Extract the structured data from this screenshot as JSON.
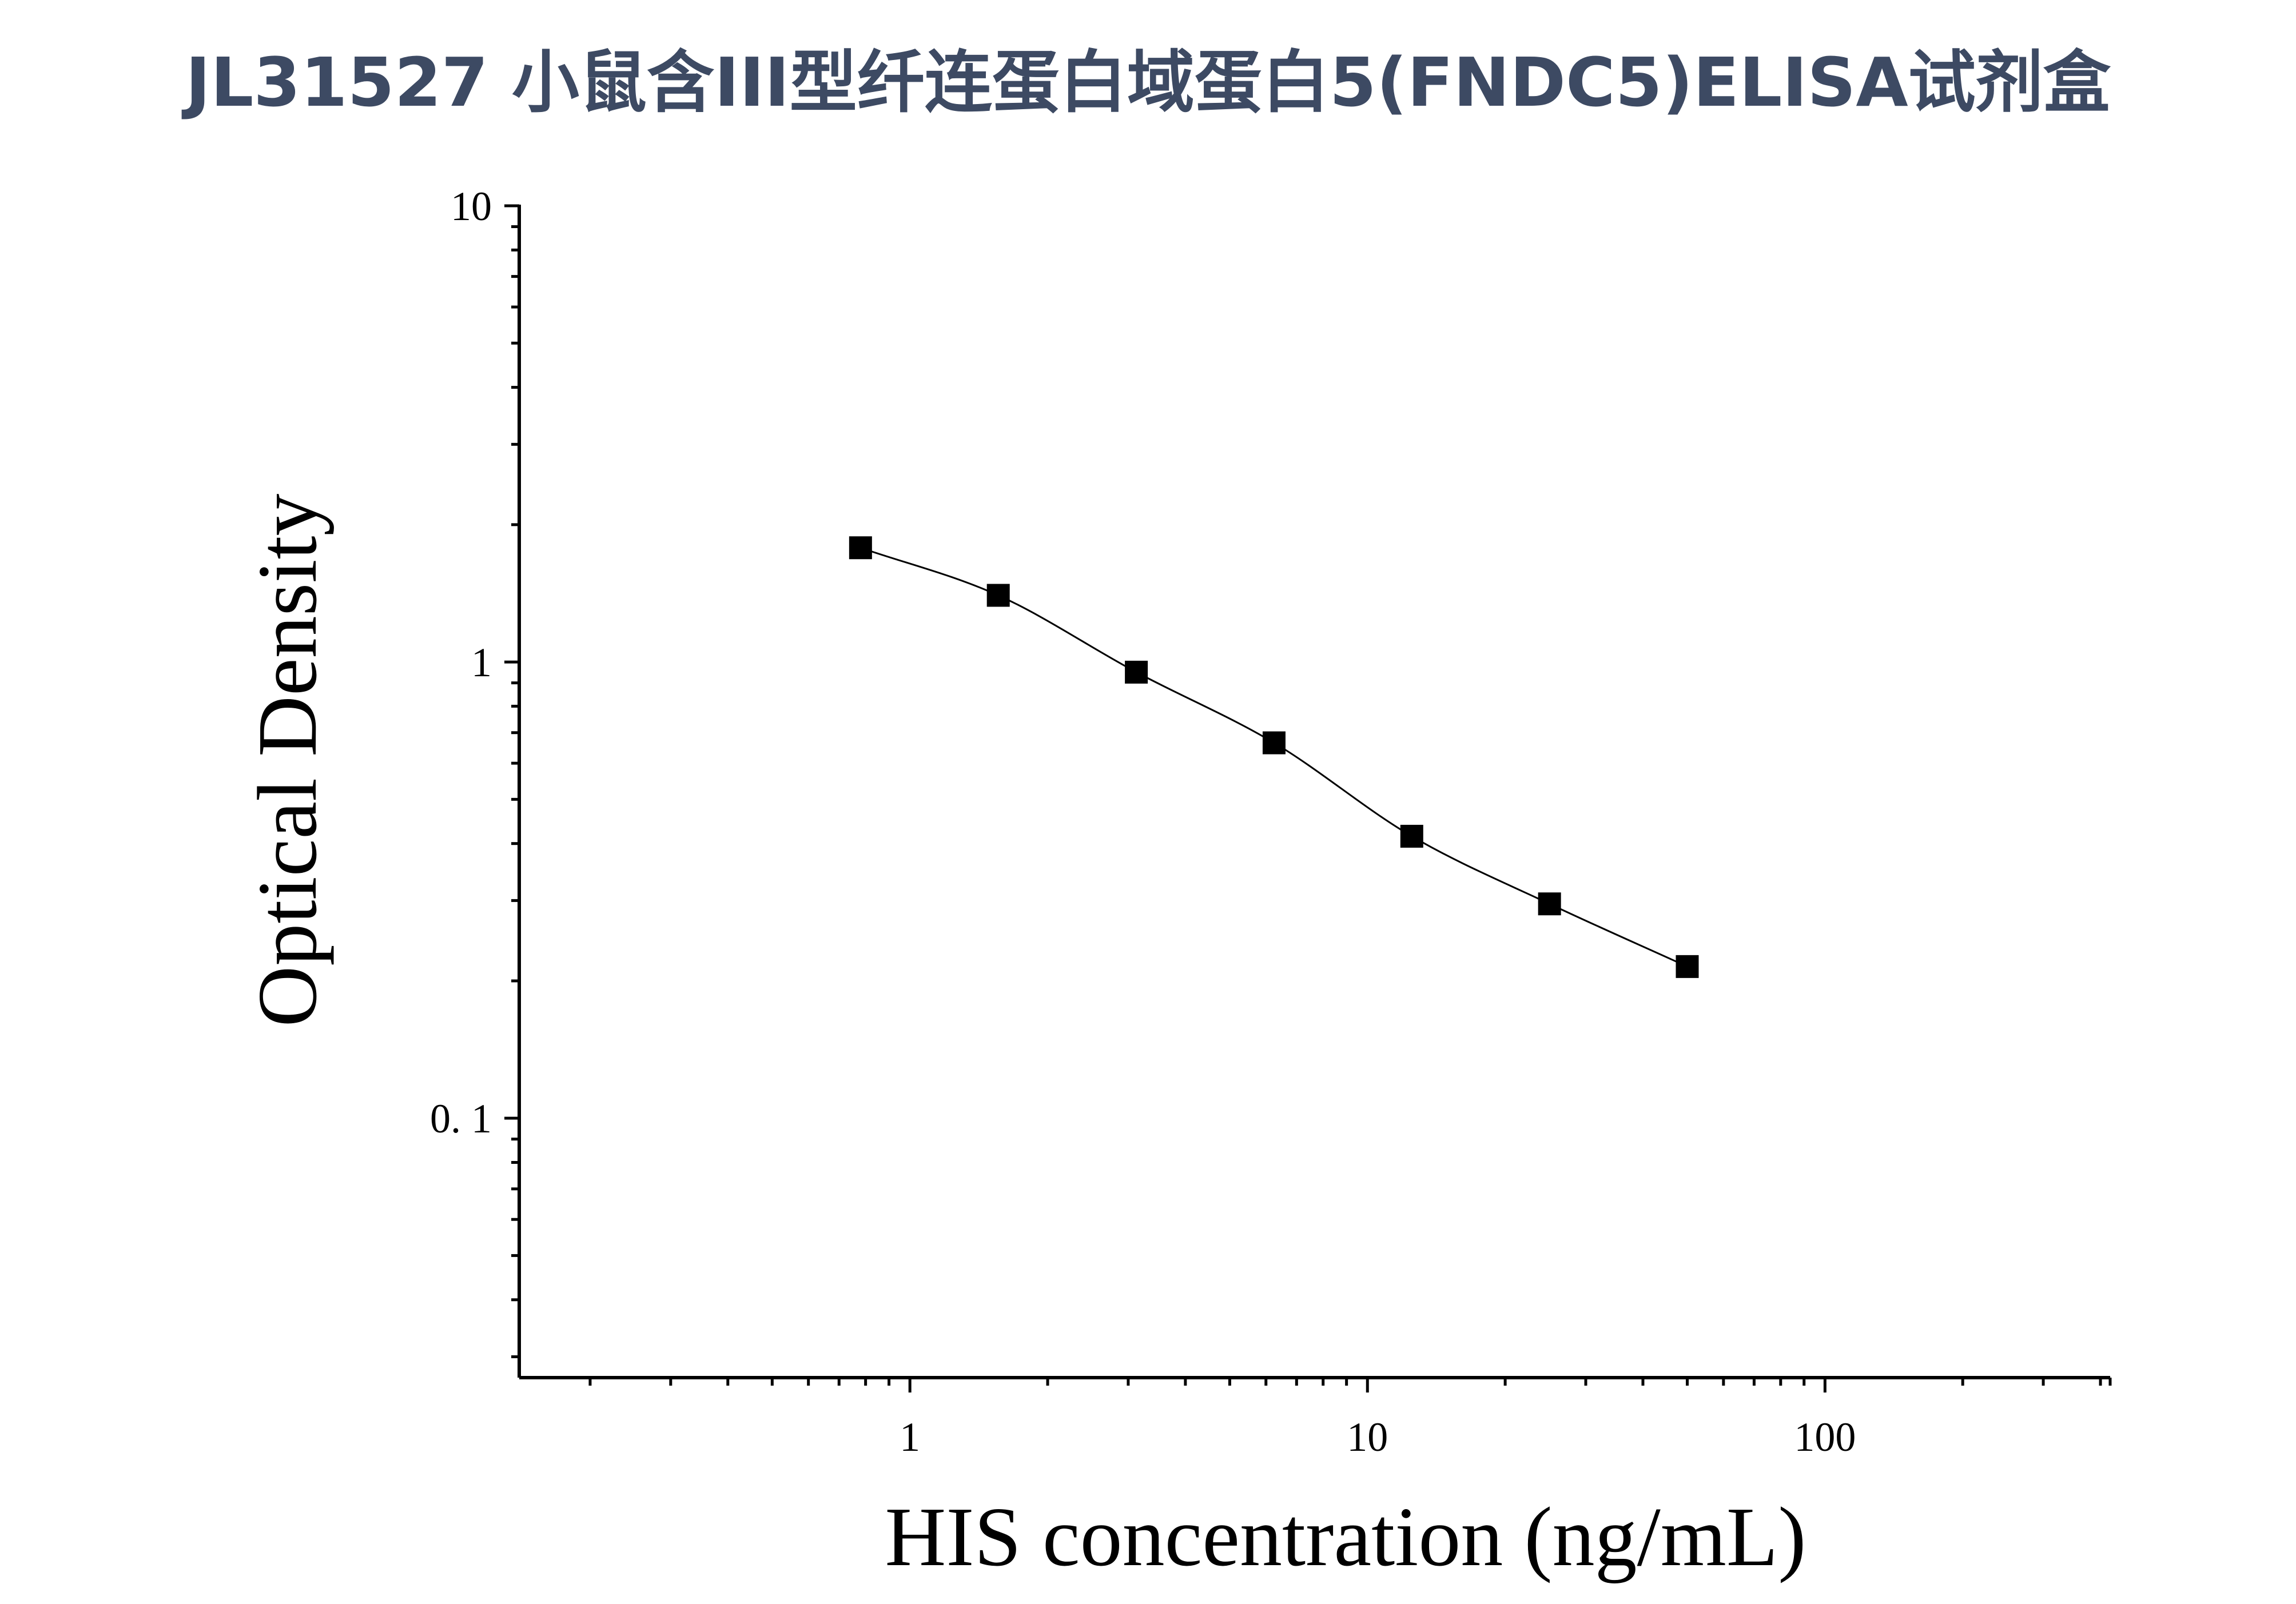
{
  "title": "JL31527 小鼠含III型纤连蛋白域蛋白5(FNDC5)ELISA试剂盒",
  "chart_data": {
    "type": "scatter",
    "title": "JL31527 小鼠含III型纤连蛋白域蛋白5(FNDC5)ELISA试剂盒",
    "xlabel": "HIS concentration (ng/mL)",
    "ylabel": "Optical Density",
    "x_scale": "log",
    "y_scale": "log",
    "xlim": [
      0.14,
      420
    ],
    "ylim": [
      0.027,
      10
    ],
    "x_ticks": [
      {
        "value": 1,
        "label": "1"
      },
      {
        "value": 10,
        "label": "10"
      },
      {
        "value": 100,
        "label": "100"
      }
    ],
    "y_ticks": [
      {
        "value": 0.1,
        "label": "0. 1"
      },
      {
        "value": 1,
        "label": "1"
      },
      {
        "value": 10,
        "label": "10"
      }
    ],
    "grid": false,
    "legend": "none",
    "series": [
      {
        "marker": "square",
        "color": "#000000",
        "points": [
          {
            "x": 0.78,
            "y": 1.78
          },
          {
            "x": 1.56,
            "y": 1.4
          },
          {
            "x": 3.125,
            "y": 0.95
          },
          {
            "x": 6.25,
            "y": 0.665
          },
          {
            "x": 12.5,
            "y": 0.415
          },
          {
            "x": 25,
            "y": 0.295
          },
          {
            "x": 50,
            "y": 0.215
          }
        ]
      }
    ],
    "fit_curve": true
  }
}
